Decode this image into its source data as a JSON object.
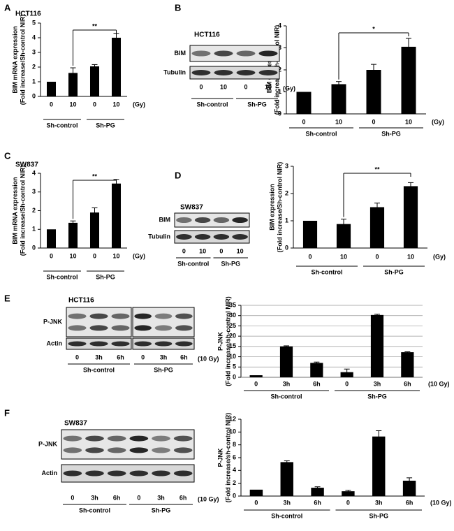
{
  "panels": [
    "A",
    "B",
    "C",
    "D",
    "E",
    "F"
  ],
  "chart_data": [
    {
      "type": "bar",
      "title": "HCT116",
      "ylabel": [
        "BIM mRNA expression",
        "(Fold increase/Sh-control NIR)"
      ],
      "categories": [
        "0",
        "10",
        "0",
        "10"
      ],
      "unit": "(Gy)",
      "groups": [
        "Sh-control",
        "Sh-PG"
      ],
      "values": [
        1,
        1.6,
        2.05,
        4.0
      ],
      "errors": [
        0,
        0.35,
        0.12,
        0.3
      ],
      "color": "#000000",
      "ylim": [
        0,
        5
      ],
      "yticks": [
        0,
        1,
        2,
        3,
        4,
        5
      ],
      "grid": false,
      "annotation": "**"
    },
    {
      "type": "bar",
      "ylabel": [
        "BIM expression",
        "(Fold increase/sh-control NIR)"
      ],
      "categories": [
        "0",
        "10",
        "0",
        "10"
      ],
      "unit": "(Gy)",
      "groups": [
        "Sh-control",
        "Sh-PG"
      ],
      "values": [
        1,
        1.35,
        2.0,
        3.05
      ],
      "errors": [
        0,
        0.12,
        0.25,
        0.38
      ],
      "color": "#000000",
      "ylim": [
        0,
        4
      ],
      "yticks": [
        0,
        1,
        2,
        3,
        4
      ],
      "grid": false,
      "annotation": "*"
    },
    {
      "type": "bar",
      "title": "SW837",
      "ylabel": [
        "BIM mRNA expression",
        "(Fold increase/Sh-control NIR)"
      ],
      "categories": [
        "0",
        "10",
        "0",
        "10"
      ],
      "unit": "(Gy)",
      "groups": [
        "Sh-control",
        "Sh-PG"
      ],
      "values": [
        1,
        1.35,
        1.9,
        3.45
      ],
      "errors": [
        0,
        0.1,
        0.25,
        0.22
      ],
      "color": "#000000",
      "ylim": [
        0,
        4
      ],
      "yticks": [
        0,
        1,
        2,
        3,
        4
      ],
      "grid": false,
      "annotation": "**"
    },
    {
      "type": "bar",
      "ylabel": [
        "BIM expression",
        "(Fold increase/Sh-control NIR)"
      ],
      "categories": [
        "0",
        "10",
        "0",
        "10"
      ],
      "unit": "(Gy)",
      "groups": [
        "Sh-control",
        "Sh-PG"
      ],
      "values": [
        1,
        0.88,
        1.5,
        2.27
      ],
      "errors": [
        0,
        0.18,
        0.15,
        0.13
      ],
      "color": "#000000",
      "ylim": [
        0,
        3
      ],
      "yticks": [
        0,
        1,
        2,
        3
      ],
      "grid": false,
      "annotation": "**"
    },
    {
      "type": "bar",
      "ylabel": [
        "P-JNK",
        "(Fold increase/sh-control NIR)"
      ],
      "categories": [
        "0",
        "3h",
        "6h",
        "0",
        "3h",
        "6h"
      ],
      "unit": "(10 Gy)",
      "groups": [
        "Sh-control",
        "Sh-PG"
      ],
      "values": [
        1,
        15,
        7,
        2.5,
        30.3,
        12.2
      ],
      "errors": [
        0,
        0.3,
        0.4,
        1.5,
        0.4,
        0.2
      ],
      "color": "#000000",
      "ylim": [
        0,
        35
      ],
      "yticks": [
        0,
        5,
        10,
        15,
        20,
        25,
        30,
        35
      ],
      "grid": true
    },
    {
      "type": "bar",
      "ylabel": [
        "P-JNK",
        "(Fold increase/sh-control NIR)"
      ],
      "categories": [
        "0",
        "3h",
        "6h",
        "0",
        "3h",
        "6h"
      ],
      "unit": "(10 Gy)",
      "groups": [
        "Sh-control",
        "Sh-PG"
      ],
      "values": [
        1,
        5.3,
        1.3,
        0.75,
        9.3,
        2.4
      ],
      "errors": [
        0,
        0.2,
        0.15,
        0.15,
        0.9,
        0.45
      ],
      "color": "#000000",
      "ylim": [
        0,
        12
      ],
      "yticks": [
        0,
        2,
        4,
        6,
        8,
        10,
        12
      ],
      "grid": false
    }
  ],
  "blots": [
    {
      "cell": "HCT116",
      "rows": [
        "BIM",
        "Tubulin"
      ],
      "lanes": [
        "0",
        "10",
        "0",
        "10"
      ],
      "unit": "(Gy)",
      "groups": [
        "Sh-control",
        "Sh-PG"
      ]
    },
    {
      "cell": "SW837",
      "rows": [
        "BIM",
        "Tubulin"
      ],
      "lanes": [
        "0",
        "10",
        "0",
        "10"
      ],
      "groups": [
        "Sh-control",
        "Sh-PG"
      ]
    },
    {
      "cell": "HCT116",
      "rows": [
        "P-JNK",
        "Actin"
      ],
      "lanes": [
        "0",
        "3h",
        "6h",
        "0",
        "3h",
        "6h"
      ],
      "unit": "(10 Gy)",
      "groups": [
        "Sh-control",
        "Sh-PG"
      ]
    },
    {
      "cell": "SW837",
      "rows": [
        "P-JNK",
        "Actin"
      ],
      "lanes": [
        "0",
        "3h",
        "6h",
        "0",
        "3h",
        "6h"
      ],
      "unit": "(10 Gy)",
      "groups": [
        "Sh-control",
        "Sh-PG"
      ]
    }
  ]
}
